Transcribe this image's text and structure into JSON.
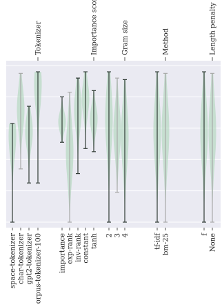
{
  "chart_data": {
    "type": "violin",
    "orientation": "rotated-90",
    "value_axis": {
      "range": [
        0,
        1
      ],
      "tick_labels_shown": false,
      "grid": true
    },
    "groups": [
      {
        "title": "Tokenizer",
        "series": [
          {
            "name": "space-tokenizer",
            "min": 0.0,
            "max": 0.63,
            "median": 0.55,
            "dark": true
          },
          {
            "name": "char-tokenizer",
            "min": 0.34,
            "max": 0.95,
            "median": 0.72,
            "dark": false
          },
          {
            "name": "gpt2-tokenizer",
            "min": 0.25,
            "max": 0.74,
            "median": 0.58,
            "dark": true
          },
          {
            "name": "corpus-tokenizer-100",
            "min": 0.25,
            "max": 0.96,
            "median": 0.88,
            "dark": true
          }
        ]
      },
      {
        "title": "Importance score",
        "series": [
          {
            "name": "importance",
            "min": 0.51,
            "max": 0.8,
            "median": 0.64,
            "dark": true
          },
          {
            "name": "exp-rank",
            "min": 0.0,
            "max": 0.83,
            "median": 0.45,
            "dark": false
          },
          {
            "name": "inv-rank",
            "min": 0.31,
            "max": 0.92,
            "median": 0.72,
            "dark": true
          },
          {
            "name": "constant",
            "min": 0.47,
            "max": 0.96,
            "median": 0.79,
            "dark": true
          },
          {
            "name": "tanh",
            "min": 0.45,
            "max": 0.84,
            "median": 0.66,
            "dark": true
          }
        ]
      },
      {
        "title": "Gram size",
        "series": [
          {
            "name": "2",
            "min": 0.0,
            "max": 0.96,
            "median": 0.66,
            "dark": true
          },
          {
            "name": "3",
            "min": 0.19,
            "max": 0.92,
            "median": 0.58,
            "dark": false
          },
          {
            "name": "4",
            "min": 0.0,
            "max": 0.91,
            "median": 0.55,
            "dark": true
          }
        ]
      },
      {
        "title": "Method",
        "series": [
          {
            "name": "tf-idf",
            "min": 0.0,
            "max": 0.96,
            "median": 0.58,
            "dark": true
          },
          {
            "name": "bm-25",
            "min": 0.0,
            "max": 0.95,
            "median": 0.58,
            "dark": false
          }
        ]
      },
      {
        "title": "Length penalty",
        "series": [
          {
            "name": "f",
            "min": 0.0,
            "max": 0.96,
            "median": 0.58,
            "dark": true
          },
          {
            "name": "None",
            "min": 0.0,
            "max": 0.95,
            "median": 0.58,
            "dark": false
          }
        ]
      }
    ],
    "colors": {
      "violin": "#a8d4b4",
      "whisker_dark": "#2f3a34",
      "whisker_light": "#a9a9a9",
      "panel": "#eaeaf2",
      "grid": "#ffffff"
    }
  }
}
